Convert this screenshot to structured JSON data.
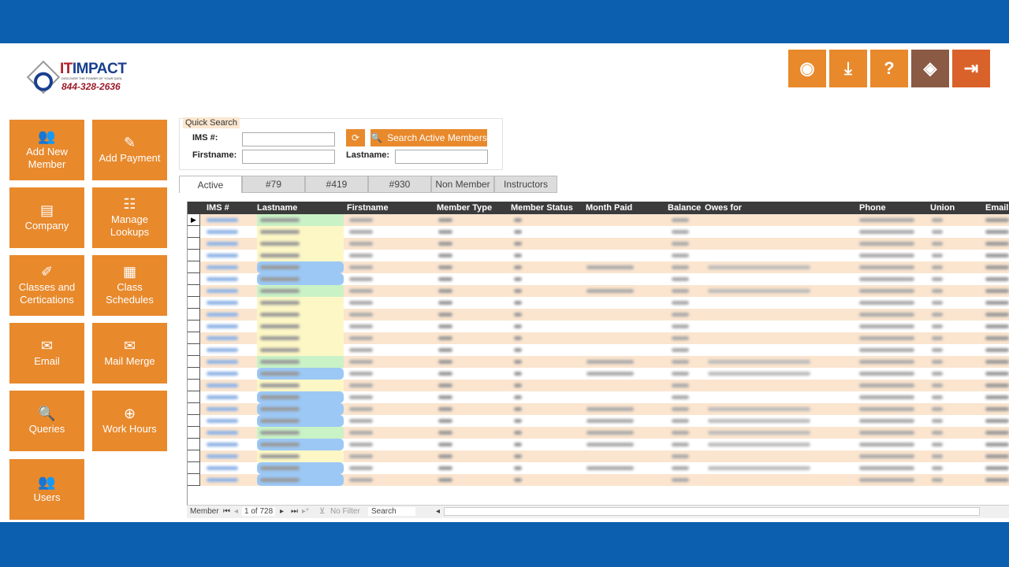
{
  "logo": {
    "name_a": "IT",
    "name_b": "IMPACT",
    "tagline": "DISCOVER THE POWER OF YOUR DATA",
    "phone": "844-328-2636"
  },
  "toolbar": [
    {
      "icon": "rss-icon",
      "color": "#e8892c"
    },
    {
      "icon": "download-icon",
      "color": "#e8892c"
    },
    {
      "icon": "help-document-icon",
      "color": "#e8892c"
    },
    {
      "icon": "itimpact-logo-icon",
      "color": "#8a5a45"
    },
    {
      "icon": "exit-icon",
      "color": "#d9622b"
    }
  ],
  "tiles": [
    {
      "label": "Add New Member",
      "icon": "users-icon",
      "glyph": "👥"
    },
    {
      "label": "Add Payment",
      "icon": "payment-icon",
      "glyph": "✎"
    },
    {
      "label": "Company",
      "icon": "company-icon",
      "glyph": "▤"
    },
    {
      "label": "Manage Lookups",
      "icon": "lookups-icon",
      "glyph": "☷"
    },
    {
      "label": "Classes and Certications",
      "icon": "classes-icon",
      "glyph": "✐"
    },
    {
      "label": "Class Schedules",
      "icon": "calendar-icon",
      "glyph": "▦"
    },
    {
      "label": "Email",
      "icon": "email-icon",
      "glyph": "✉"
    },
    {
      "label": "Mail Merge",
      "icon": "mail-icon",
      "glyph": "✉"
    },
    {
      "label": "Queries",
      "icon": "search-icon",
      "glyph": "🔍"
    },
    {
      "label": "Work Hours",
      "icon": "work-hours-icon",
      "glyph": "⊕"
    },
    {
      "label": "Users",
      "icon": "users-icon",
      "glyph": "👥"
    }
  ],
  "quick_search": {
    "legend": "Quick Search",
    "ims_label": "IMS #:",
    "firstname_label": "Firstname:",
    "lastname_label": "Lastname:",
    "ims_value": "",
    "firstname_value": "",
    "lastname_value": "",
    "search_button": "Search Active Members"
  },
  "tabs": [
    "Active",
    "#79",
    "#419",
    "#930",
    "Non Member",
    "Instructors"
  ],
  "columns": [
    "IMS #",
    "Lastname",
    "Firstname",
    "Member Type",
    "Member Status",
    "Month Paid",
    "Balance",
    "Owes for",
    "Phone",
    "Union",
    "Email"
  ],
  "row_highlights": [
    "green",
    "yellow",
    "yellow",
    "yellow",
    "blue",
    "blue",
    "green",
    "yellow",
    "yellow",
    "yellow",
    "yellow",
    "yellow",
    "green",
    "blue",
    "yellow",
    "blue",
    "blue",
    "blue",
    "green",
    "blue",
    "yellow",
    "blue",
    "blue"
  ],
  "rows_with_owes": [
    4,
    6,
    12,
    13,
    16,
    17,
    18,
    19,
    21
  ],
  "nav": {
    "record_label": "Member",
    "record_position": "1 of 728",
    "filter": "No Filter",
    "search": "Search"
  },
  "colors": {
    "orange": "#e8892c",
    "frame_blue": "#0c5fae",
    "header": "#3b3b3b",
    "row_alt": "#fbe5cf",
    "green": "#c9f2c6",
    "yellow": "#fdf7c6",
    "blue": "#9cc8f5"
  }
}
